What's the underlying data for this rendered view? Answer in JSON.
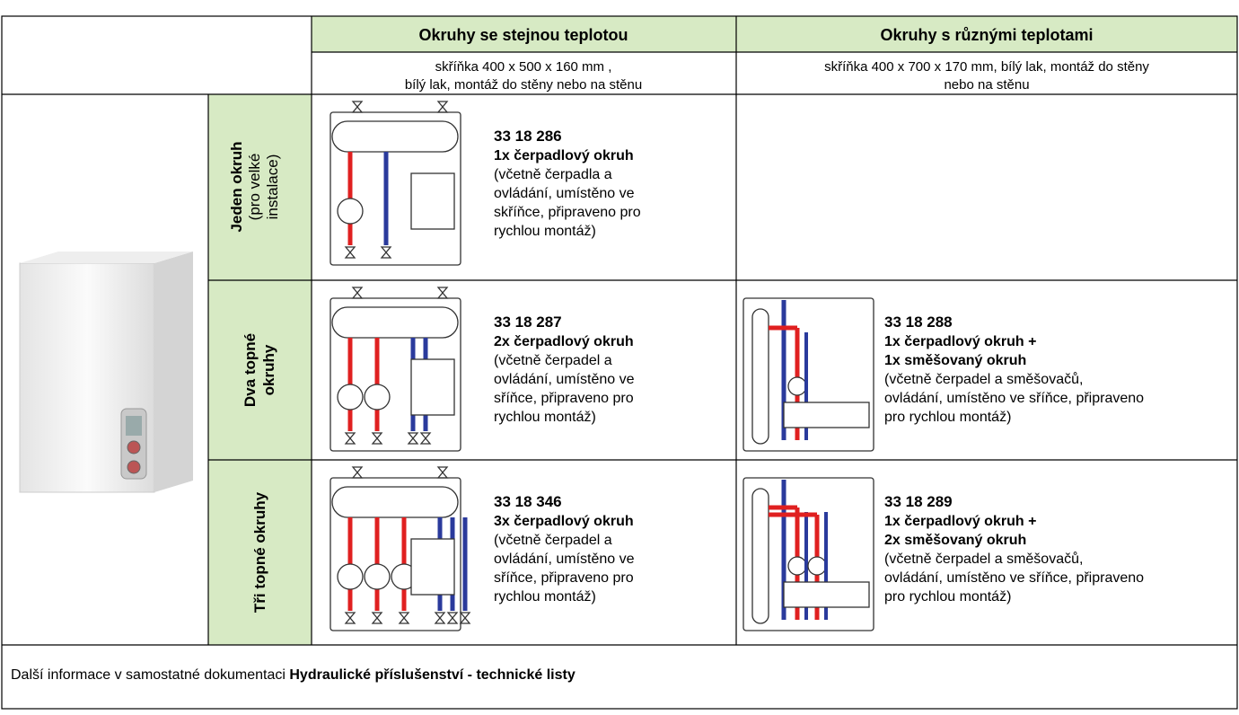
{
  "header": {
    "col1": "Okruhy se stejnou teplotou",
    "col2": "Okruhy s různými teplotami",
    "col1_note": [
      "skříňka 400 x 500 x 160 mm ,",
      "bílý lak, montáž do stěny nebo na stěnu"
    ],
    "col2_note": [
      "skříňka 400 x 700 x 170 mm, bílý lak, montáž do stěny",
      "nebo na stěnu"
    ]
  },
  "rows": [
    {
      "label": "Jeden okruh",
      "label_note": [
        "(pro velké",
        "instalace)"
      ],
      "items": [
        {
          "code": "33 18 286",
          "title": [
            "1x čerpadlový okruh"
          ],
          "desc": [
            "(včetně čerpadla a",
            "ovládání, umístěno ve",
            "skříňce, připraveno pro",
            "rychlou montáž)"
          ]
        }
      ]
    },
    {
      "label": [
        "Dva topné",
        "okruhy"
      ],
      "items": [
        {
          "code": "33 18 287",
          "title": [
            "2x čerpadlový okruh"
          ],
          "desc": [
            "(včetně čerpadel a",
            "ovládání, umístěno ve",
            "sříňce, připraveno pro",
            "rychlou montáž)"
          ]
        },
        {
          "code": "33 18 288",
          "title": [
            "1x čerpadlový okruh +",
            "1x směšovaný okruh"
          ],
          "desc": [
            "(včetně čerpadel a směšovačů,",
            "ovládání, umístěno ve sříňce, připraveno",
            "pro rychlou montáž)"
          ]
        }
      ]
    },
    {
      "label": [
        "Tři topné okruhy"
      ],
      "items": [
        {
          "code": "33 18 346",
          "title": [
            "3x čerpadlový okruh"
          ],
          "desc": [
            "(včetně čerpadel a",
            "ovládání, umístěno ve",
            "sříňce, připraveno pro",
            "rychlou montáž)"
          ]
        },
        {
          "code": "33 18 289",
          "title": [
            "1x čerpadlový okruh +",
            "2x směšovaný okruh"
          ],
          "desc": [
            "(včetně čerpadel a směšovačů,",
            "ovládání, umístěno ve sříňce, připraveno",
            "pro rychlou montáž)"
          ]
        }
      ]
    }
  ],
  "footer": {
    "text": "Další informace v samostatné dokumentaci ",
    "bold": "Hydraulické příslušenství - technické listy"
  }
}
